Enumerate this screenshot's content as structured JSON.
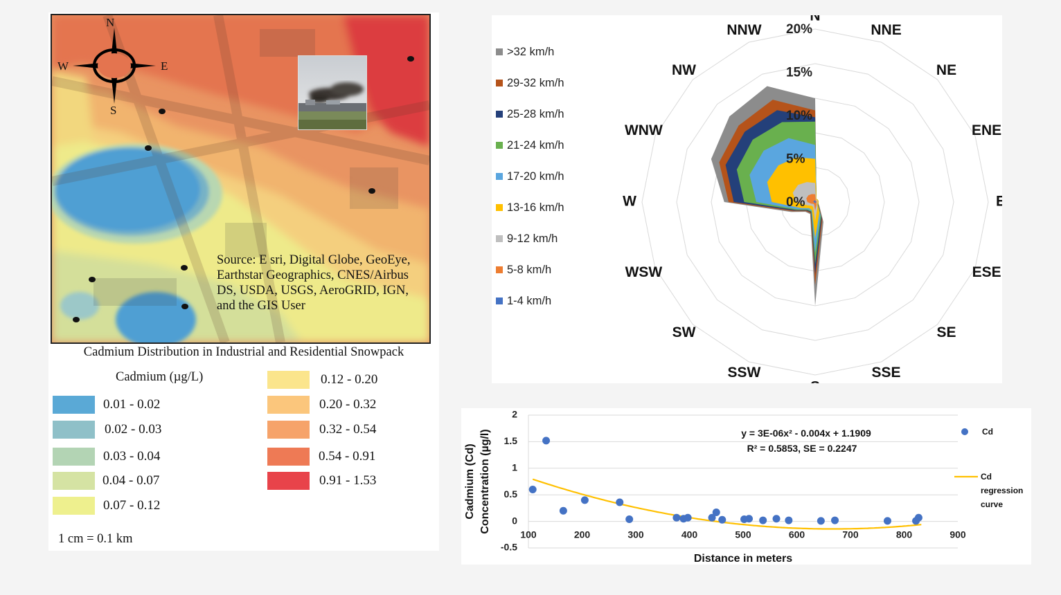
{
  "map": {
    "compass": {
      "n": "N",
      "e": "E",
      "s": "S",
      "w": "W"
    },
    "source_text": "Source: E sri, Digital Globe, GeoEye, Earthstar Geographics, CNES/Airbus DS, USDA, USGS, AeroGRID, IGN, and the GIS User",
    "title": "Cadmium Distribution in Industrial and Residential Snowpack",
    "legend_title": "Cadmium (µg/L)",
    "legend": [
      {
        "label": "0.01 - 0.02",
        "color": "#5aa9d6"
      },
      {
        "label": "0.02 - 0.03",
        "color": "#8fc0c8"
      },
      {
        "label": "0.03 - 0.04",
        "color": "#b3d4b4"
      },
      {
        "label": "0.04 - 0.07",
        "color": "#d5e3a3"
      },
      {
        "label": "0.07 - 0.12",
        "color": "#eef08e"
      },
      {
        "label": "0.12 - 0.20",
        "color": "#fbe58c"
      },
      {
        "label": "0.20 - 0.32",
        "color": "#fbc67c"
      },
      {
        "label": "0.32 - 0.54",
        "color": "#f6a36a"
      },
      {
        "label": "0.54 - 0.91",
        "color": "#ee7a55"
      },
      {
        "label": "0.91 - 1.53",
        "color": "#e8434a"
      }
    ],
    "scale": "1 cm = 0.1 km"
  },
  "wind_rose": {
    "chart_data": {
      "type": "radar",
      "directions": [
        "N",
        "NNE",
        "NE",
        "ENE",
        "E",
        "ESE",
        "SE",
        "SSE",
        "S",
        "SSW",
        "SW",
        "WSW",
        "W",
        "WNW",
        "NW",
        "NNW"
      ],
      "radial_ticks": [
        "0%",
        "5%",
        "10%",
        "15%",
        "20%"
      ],
      "rmax": 20,
      "series": [
        {
          "name": ">32 km/h",
          "color": "#8c8c8c",
          "values": [
            12,
            0.4,
            0.4,
            0.4,
            0.4,
            0.4,
            0.7,
            2.5,
            12,
            1.5,
            1.6,
            3,
            10.5,
            13,
            14,
            14.5
          ]
        },
        {
          "name": "29-32 km/h",
          "color": "#b5531a",
          "values": [
            10.6,
            0.4,
            0.4,
            0.4,
            0.4,
            0.4,
            0.6,
            2.2,
            9.6,
            1.4,
            1.5,
            2.8,
            10,
            12,
            12.5,
            12.8
          ]
        },
        {
          "name": "25-28 km/h",
          "color": "#24407a",
          "values": [
            9.8,
            0.4,
            0.4,
            0.4,
            0.4,
            0.4,
            0.5,
            2.0,
            8.4,
            1.3,
            1.4,
            2.6,
            9.4,
            11.2,
            11.5,
            11.5
          ]
        },
        {
          "name": "21-24 km/h",
          "color": "#69b04e",
          "values": [
            9.3,
            0.4,
            0.4,
            0.4,
            0.4,
            0.4,
            0.5,
            1.8,
            7.2,
            1.2,
            1.3,
            2.4,
            8.2,
            9.8,
            10.2,
            10.0
          ]
        },
        {
          "name": "17-20 km/h",
          "color": "#5aa6df",
          "values": [
            6.6,
            0.4,
            0.4,
            0.4,
            0.4,
            0.4,
            0.4,
            1.6,
            5.9,
            1.1,
            1.2,
            2.2,
            6.8,
            8.2,
            8.4,
            8.0
          ]
        },
        {
          "name": "13-16 km/h",
          "color": "#ffc000",
          "values": [
            5.0,
            0.4,
            0.4,
            0.4,
            0.4,
            0.4,
            0.4,
            1.3,
            4.2,
            1.0,
            1.0,
            1.8,
            5.0,
            6.0,
            6.0,
            5.6
          ]
        },
        {
          "name": "9-12 km/h",
          "color": "#bfbfbf",
          "values": [
            2.2,
            0.3,
            0.3,
            0.3,
            0.3,
            0.3,
            0.3,
            0.7,
            2.2,
            0.6,
            0.6,
            1.0,
            2.2,
            2.8,
            2.8,
            2.5
          ]
        },
        {
          "name": "5-8 km/h",
          "color": "#ed7d31",
          "values": [
            0.9,
            0.2,
            0.2,
            0.2,
            0.2,
            0.2,
            0.2,
            0.4,
            1.0,
            0.3,
            0.3,
            0.5,
            0.9,
            1.1,
            1.1,
            1.0
          ]
        },
        {
          "name": "1-4 km/h",
          "color": "#4472c4",
          "values": [
            0.2,
            0.1,
            0.1,
            0.1,
            0.1,
            0.1,
            0.1,
            0.1,
            0.2,
            0.1,
            0.1,
            0.1,
            0.2,
            0.2,
            0.2,
            0.2
          ]
        }
      ]
    }
  },
  "regression": {
    "chart_data": {
      "type": "scatter",
      "x_label": "Distance in meters",
      "y_label_line1": "Cadmium (Cd)",
      "y_label_line2": "Concentration (µg/l)",
      "xlim": [
        100,
        900
      ],
      "ylim": [
        -0.5,
        2
      ],
      "x_ticks": [
        100,
        200,
        300,
        400,
        500,
        600,
        700,
        800,
        900
      ],
      "y_ticks": [
        -0.5,
        0,
        0.5,
        1,
        1.5,
        2
      ],
      "y_tick_labels": [
        "-0.5",
        "0",
        "0.5",
        "1",
        "1.5",
        "2"
      ],
      "equation": "y = 3E-06x² - 0.004x + 1.1909",
      "r2_text": "R² = 0.5853, SE = 0.2247",
      "series_name": "Cd",
      "curve_name": "Cd regression curve",
      "curve_coeffs": [
        3e-06,
        -0.004,
        1.1909
      ],
      "curve_range": [
        108,
        832
      ],
      "point_color": "#4472c4",
      "curve_color": "#ffc000",
      "points": [
        [
          108,
          0.6
        ],
        [
          133,
          1.52
        ],
        [
          165,
          0.2
        ],
        [
          205,
          0.4
        ],
        [
          270,
          0.36
        ],
        [
          288,
          0.04
        ],
        [
          376,
          0.07
        ],
        [
          389,
          0.05
        ],
        [
          397,
          0.07
        ],
        [
          442,
          0.07
        ],
        [
          450,
          0.17
        ],
        [
          461,
          0.03
        ],
        [
          502,
          0.04
        ],
        [
          511,
          0.05
        ],
        [
          537,
          0.02
        ],
        [
          562,
          0.05
        ],
        [
          585,
          0.02
        ],
        [
          645,
          0.01
        ],
        [
          671,
          0.02
        ],
        [
          769,
          0.01
        ],
        [
          822,
          0.01
        ],
        [
          827,
          0.07
        ]
      ]
    }
  }
}
